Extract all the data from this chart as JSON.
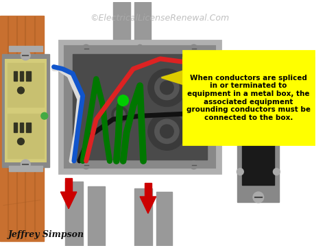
{
  "watermark": "©ElectricalLicenseRenewal.Com",
  "author": "Jeffrey Simpson",
  "callout_text": "When conductors are spliced\nin or terminated to\nequipment in a metal box, the\nassociated equipment\ngrounding conductors must be\nconnected to the box.",
  "bg_color": "#ffffff",
  "wood_color": "#c87030",
  "wood_grain": "#a05820",
  "outlet_body": "#d4cc7a",
  "outlet_face": "#c8c070",
  "outlet_slot": "#333322",
  "switch_plate": "#222222",
  "switch_toggle": "#cccc88",
  "metal_light": "#b0b0b0",
  "metal_mid": "#888888",
  "metal_dark": "#555555",
  "metal_inner": "#666666",
  "metal_deep": "#444444",
  "wire_red": "#dd2222",
  "wire_black": "#111111",
  "wire_white": "#dddddd",
  "wire_green": "#007700",
  "wire_blue": "#1155cc",
  "conduit_light": "#c0c0c0",
  "conduit_mid": "#999999",
  "conduit_dark": "#666666",
  "callout_bg": "#ffff00",
  "callout_border": "#333333",
  "arrow_yellow": "#ddcc00",
  "red_arrow": "#cc0000",
  "green_dot": "#00cc00",
  "green_screw": "#44aa44"
}
